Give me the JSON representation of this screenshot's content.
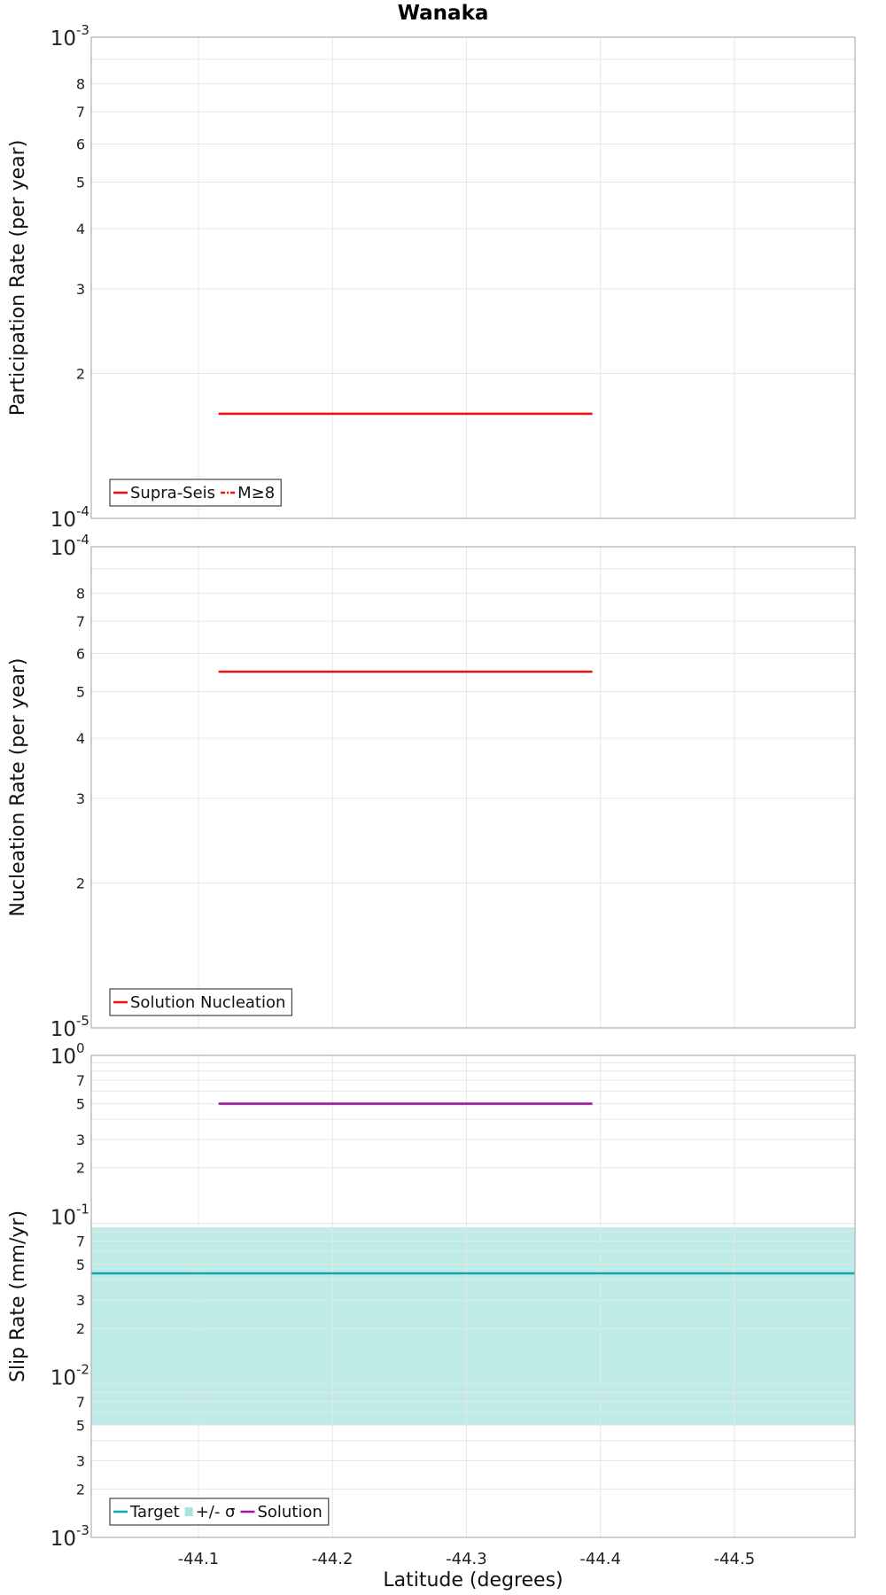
{
  "chart_data": [
    {
      "type": "line",
      "title": "Wanaka",
      "ylabel": "Participation Rate (per year)",
      "yscale": "log",
      "ylim": [
        0.0001,
        0.001
      ],
      "xlim": [
        -44.02,
        -44.59
      ],
      "x_reversed": true,
      "major_ticks": [
        {
          "value": 0.0001,
          "base": "10",
          "exp": "-4"
        },
        {
          "value": 0.001,
          "base": "10",
          "exp": "-3"
        }
      ],
      "minor_ticks": [
        {
          "value": 0.0002,
          "label": "2"
        },
        {
          "value": 0.0003,
          "label": "3"
        },
        {
          "value": 0.0004,
          "label": "4"
        },
        {
          "value": 0.0005,
          "label": "5"
        },
        {
          "value": 0.0006,
          "label": "6"
        },
        {
          "value": 0.0007,
          "label": "7"
        },
        {
          "value": 0.0008,
          "label": "8"
        },
        {
          "value": 0.0009,
          "label": ""
        }
      ],
      "series": [
        {
          "name": "Supra-Seis",
          "style": "solid",
          "color": "#ee1111",
          "x": [
            -44.115,
            -44.394
          ],
          "y": [
            0.000165,
            0.000165
          ]
        },
        {
          "name": "M≥8",
          "style": "dashdot",
          "color": "#ee1111",
          "x": [],
          "y": []
        }
      ],
      "legend": "bottom-left"
    },
    {
      "type": "line",
      "ylabel": "Nucleation Rate (per year)",
      "yscale": "log",
      "ylim": [
        1e-05,
        0.0001
      ],
      "xlim": [
        -44.02,
        -44.59
      ],
      "x_reversed": true,
      "major_ticks": [
        {
          "value": 1e-05,
          "base": "10",
          "exp": "-5"
        },
        {
          "value": 0.0001,
          "base": "10",
          "exp": "-4"
        }
      ],
      "minor_ticks": [
        {
          "value": 2e-05,
          "label": "2"
        },
        {
          "value": 3e-05,
          "label": "3"
        },
        {
          "value": 4e-05,
          "label": "4"
        },
        {
          "value": 5e-05,
          "label": "5"
        },
        {
          "value": 6e-05,
          "label": "6"
        },
        {
          "value": 7e-05,
          "label": "7"
        },
        {
          "value": 8e-05,
          "label": "8"
        },
        {
          "value": 9e-05,
          "label": ""
        }
      ],
      "series": [
        {
          "name": "Solution Nucleation",
          "style": "solid",
          "color": "#ee1111",
          "x": [
            -44.115,
            -44.394
          ],
          "y": [
            5.5e-05,
            5.5e-05
          ]
        }
      ],
      "legend": "bottom-left"
    },
    {
      "type": "line",
      "ylabel": "Slip Rate (mm/yr)",
      "xlabel": "Latitude (degrees)",
      "yscale": "log",
      "ylim": [
        0.001,
        1
      ],
      "xlim": [
        -44.02,
        -44.59
      ],
      "x_reversed": true,
      "x_ticks": [
        {
          "value": -44.1,
          "label": "-44.1"
        },
        {
          "value": -44.2,
          "label": "-44.2"
        },
        {
          "value": -44.3,
          "label": "-44.3"
        },
        {
          "value": -44.4,
          "label": "-44.4"
        },
        {
          "value": -44.5,
          "label": "-44.5"
        }
      ],
      "major_ticks": [
        {
          "value": 0.001,
          "base": "10",
          "exp": "-3"
        },
        {
          "value": 0.01,
          "base": "10",
          "exp": "-2"
        },
        {
          "value": 0.1,
          "base": "10",
          "exp": "-1"
        },
        {
          "value": 1,
          "base": "10",
          "exp": "0"
        }
      ],
      "minor_ticks": [
        {
          "value": 0.002,
          "label": "2"
        },
        {
          "value": 0.003,
          "label": "3"
        },
        {
          "value": 0.004,
          "label": ""
        },
        {
          "value": 0.005,
          "label": "5"
        },
        {
          "value": 0.006,
          "label": ""
        },
        {
          "value": 0.007,
          "label": "7"
        },
        {
          "value": 0.008,
          "label": ""
        },
        {
          "value": 0.009,
          "label": ""
        },
        {
          "value": 0.02,
          "label": "2"
        },
        {
          "value": 0.03,
          "label": "3"
        },
        {
          "value": 0.04,
          "label": ""
        },
        {
          "value": 0.05,
          "label": "5"
        },
        {
          "value": 0.06,
          "label": ""
        },
        {
          "value": 0.07,
          "label": "7"
        },
        {
          "value": 0.08,
          "label": ""
        },
        {
          "value": 0.09,
          "label": ""
        },
        {
          "value": 0.2,
          "label": "2"
        },
        {
          "value": 0.3,
          "label": "3"
        },
        {
          "value": 0.4,
          "label": ""
        },
        {
          "value": 0.5,
          "label": "5"
        },
        {
          "value": 0.6,
          "label": ""
        },
        {
          "value": 0.7,
          "label": "7"
        },
        {
          "value": 0.8,
          "label": ""
        },
        {
          "value": 0.9,
          "label": ""
        }
      ],
      "band": {
        "name": "+/- σ",
        "color": "#a8e4e0",
        "low": 0.005,
        "high": 0.085
      },
      "series": [
        {
          "name": "Target",
          "style": "solid",
          "color": "#11aaaa",
          "x": [
            -44.02,
            -44.59
          ],
          "y": [
            0.044,
            0.044
          ]
        },
        {
          "name": "Solution",
          "style": "solid",
          "color": "#aa11aa",
          "x": [
            -44.115,
            -44.394
          ],
          "y": [
            0.5,
            0.5
          ]
        }
      ],
      "legend": "bottom-left"
    }
  ]
}
